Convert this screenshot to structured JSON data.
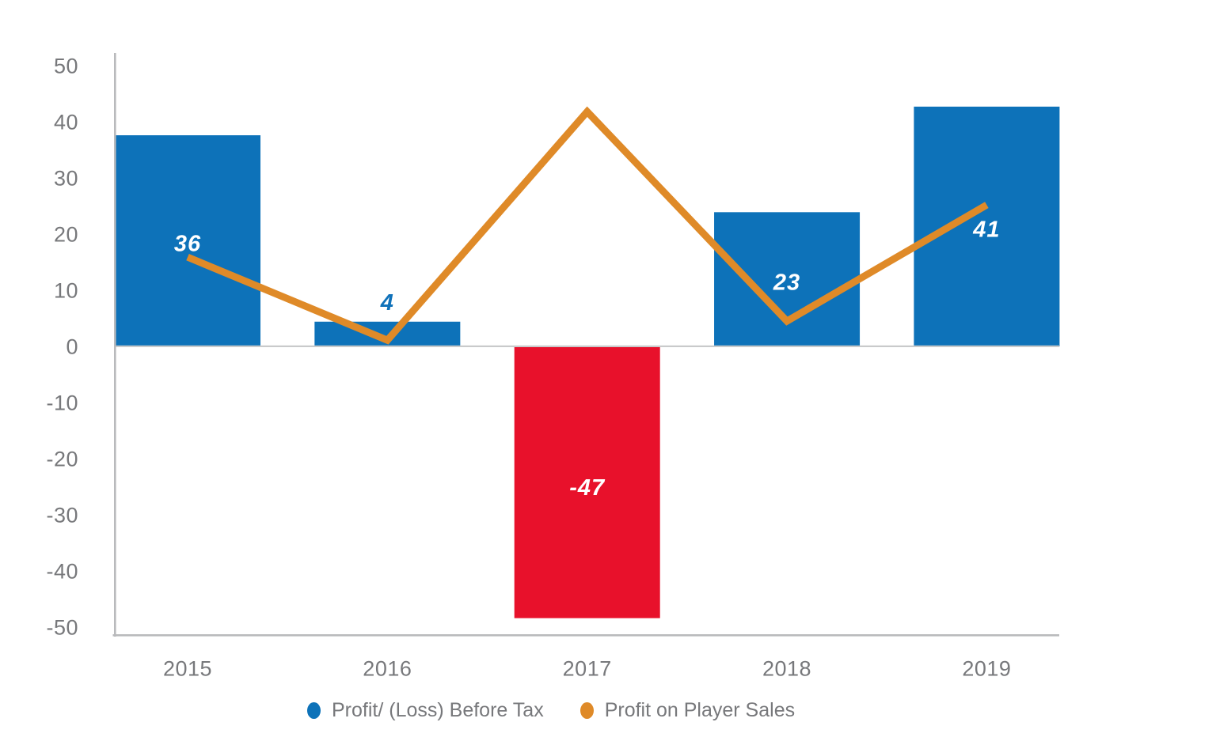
{
  "chart_data": {
    "type": "combo bar+line",
    "categories": [
      "2015",
      "2016",
      "2017",
      "2018",
      "2019"
    ],
    "series": [
      {
        "name": "Profit/ (Loss) Before Tax",
        "type": "bar",
        "values": [
          36,
          4,
          -47,
          23,
          41
        ],
        "data_labels": [
          "36",
          "4",
          "-47",
          "23",
          "41"
        ],
        "bar_colors": [
          "#0d72b9",
          "#0d72b9",
          "#e8112b",
          "#0d72b9",
          "#0d72b9"
        ],
        "label_colors": [
          "#ffffff",
          "#1072ba",
          "#ffffff",
          "#ffffff",
          "#ffffff"
        ],
        "drawn_values": [
          37.6,
          4.4,
          -48.4,
          23.9,
          42.7
        ],
        "legend_color": "#0d72b9"
      },
      {
        "name": "Profit on Player Sales",
        "type": "line",
        "values": [
          16,
          1,
          42,
          5,
          25
        ],
        "drawn_values": [
          15.9,
          1.1,
          41.8,
          4.5,
          25.2
        ],
        "color": "#df8a28"
      }
    ],
    "ylim": [
      -50,
      50
    ],
    "yticks": [
      "50",
      "40",
      "30",
      "20",
      "10",
      "0",
      "-10",
      "-20",
      "-30",
      "-40",
      "-50"
    ],
    "grid": "zero-line-only",
    "legend_position": "bottom",
    "title": "",
    "xlabel": "",
    "ylabel": ""
  },
  "colors": {
    "bar_positive": "#0d72b9",
    "bar_negative": "#e8112b",
    "line": "#df8a28",
    "axis_line": "#b9babc",
    "zero_line": "#c9cacb",
    "tick_text": "#77787b",
    "legend_text": "#77787b"
  }
}
